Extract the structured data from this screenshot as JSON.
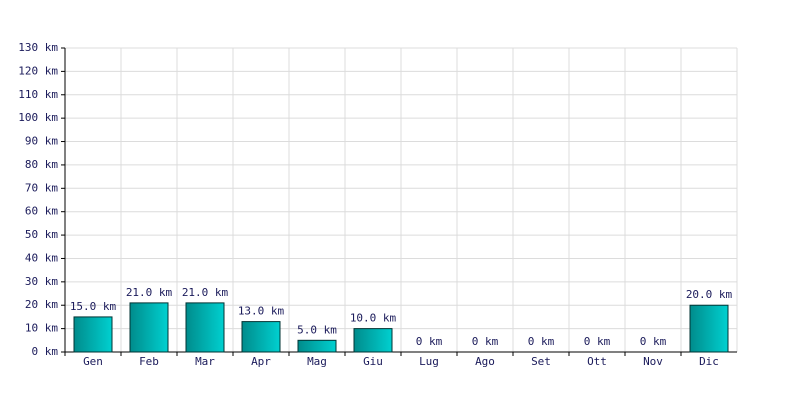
{
  "chart_data": {
    "type": "bar",
    "categories": [
      "Gen",
      "Feb",
      "Mar",
      "Apr",
      "Mag",
      "Giu",
      "Lug",
      "Ago",
      "Set",
      "Ott",
      "Nov",
      "Dic"
    ],
    "values": [
      15,
      21,
      21,
      13,
      5,
      10,
      0,
      0,
      0,
      0,
      0,
      20
    ],
    "value_labels": [
      "15.0 km",
      "21.0 km",
      "21.0 km",
      "13.0 km",
      "5.0 km",
      "10.0 km",
      "0 km",
      "0 km",
      "0 km",
      "0 km",
      "0 km",
      "20.0 km"
    ],
    "color": "#00d0d0",
    "ylim": [
      0,
      130
    ],
    "yticks": [
      {
        "value": 0,
        "label": "0 km"
      },
      {
        "value": 10,
        "label": "10 km"
      },
      {
        "value": 20,
        "label": "20 km"
      },
      {
        "value": 30,
        "label": "30 km"
      },
      {
        "value": 40,
        "label": "40 km"
      },
      {
        "value": 50,
        "label": "50 km"
      },
      {
        "value": 60,
        "label": "60 km"
      },
      {
        "value": 70,
        "label": "70 km"
      },
      {
        "value": 80,
        "label": "80 km"
      },
      {
        "value": 90,
        "label": "90 km"
      },
      {
        "value": 100,
        "label": "100 km"
      },
      {
        "value": 110,
        "label": "110 km"
      },
      {
        "value": 120,
        "label": "120 km"
      },
      {
        "value": 130,
        "label": "130 km"
      }
    ],
    "grid": true
  }
}
